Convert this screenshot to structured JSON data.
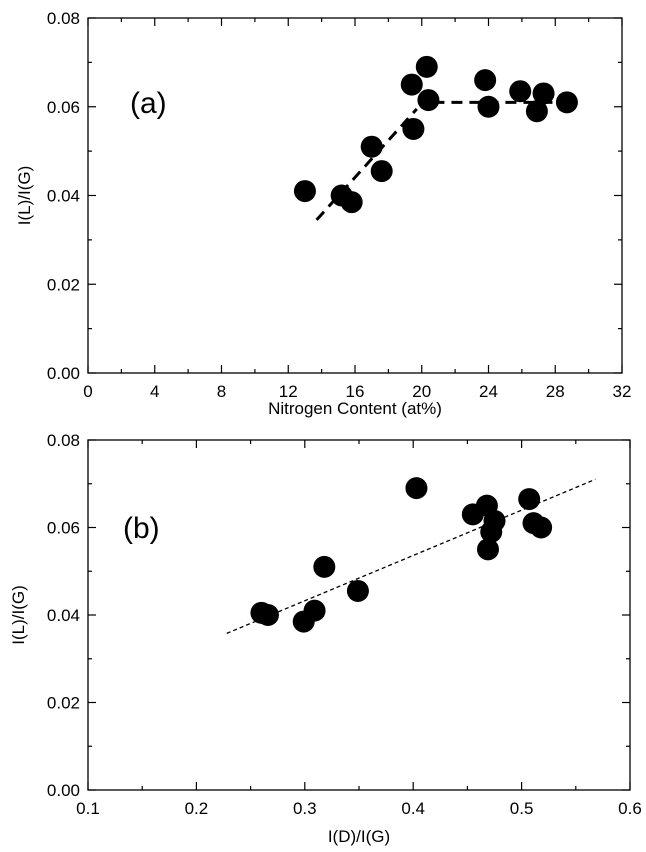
{
  "chart_data": [
    {
      "type": "scatter",
      "panel_label": "(a)",
      "xlabel": "Nitrogen Content (at%)",
      "ylabel": "I(L)/I(G)",
      "xlim": [
        0,
        32
      ],
      "ylim": [
        0.0,
        0.08
      ],
      "x_ticks": [
        "0",
        "4",
        "8",
        "12",
        "16",
        "20",
        "24",
        "28",
        "32"
      ],
      "y_ticks": [
        "0.00",
        "0.02",
        "0.04",
        "0.06",
        "0.08"
      ],
      "grid": false,
      "points": [
        {
          "x": 13.0,
          "y": 0.041
        },
        {
          "x": 15.2,
          "y": 0.04
        },
        {
          "x": 15.8,
          "y": 0.0385
        },
        {
          "x": 17.0,
          "y": 0.051
        },
        {
          "x": 17.6,
          "y": 0.0455
        },
        {
          "x": 19.4,
          "y": 0.065
        },
        {
          "x": 19.5,
          "y": 0.055
        },
        {
          "x": 20.3,
          "y": 0.069
        },
        {
          "x": 20.4,
          "y": 0.0615
        },
        {
          "x": 23.8,
          "y": 0.066
        },
        {
          "x": 24.0,
          "y": 0.06
        },
        {
          "x": 25.9,
          "y": 0.0635
        },
        {
          "x": 26.9,
          "y": 0.059
        },
        {
          "x": 27.3,
          "y": 0.063
        },
        {
          "x": 28.7,
          "y": 0.061
        }
      ],
      "fit_lines": [
        {
          "style": "dashed",
          "x": [
            13.7,
            19.7
          ],
          "y": [
            0.0345,
            0.0595
          ]
        },
        {
          "style": "dashed",
          "x": [
            20.7,
            28.7
          ],
          "y": [
            0.061,
            0.061
          ]
        }
      ]
    },
    {
      "type": "scatter",
      "panel_label": "(b)",
      "xlabel": "I(D)/I(G)",
      "ylabel": "I(L)/I(G)",
      "xlim": [
        0.1,
        0.6
      ],
      "ylim": [
        0.0,
        0.08
      ],
      "x_ticks": [
        "0.1",
        "0.2",
        "0.3",
        "0.4",
        "0.5",
        "0.6"
      ],
      "y_ticks": [
        "0.00",
        "0.02",
        "0.04",
        "0.06",
        "0.08"
      ],
      "grid": false,
      "points": [
        {
          "x": 0.26,
          "y": 0.0405
        },
        {
          "x": 0.266,
          "y": 0.04
        },
        {
          "x": 0.299,
          "y": 0.0385
        },
        {
          "x": 0.309,
          "y": 0.041
        },
        {
          "x": 0.318,
          "y": 0.051
        },
        {
          "x": 0.349,
          "y": 0.0455
        },
        {
          "x": 0.403,
          "y": 0.069
        },
        {
          "x": 0.455,
          "y": 0.063
        },
        {
          "x": 0.468,
          "y": 0.065
        },
        {
          "x": 0.469,
          "y": 0.055
        },
        {
          "x": 0.472,
          "y": 0.059
        },
        {
          "x": 0.475,
          "y": 0.0615
        },
        {
          "x": 0.507,
          "y": 0.0665
        },
        {
          "x": 0.511,
          "y": 0.061
        },
        {
          "x": 0.518,
          "y": 0.06
        }
      ],
      "fit_lines": [
        {
          "style": "dotted",
          "x": [
            0.228,
            0.568
          ],
          "y": [
            0.0358,
            0.071
          ]
        }
      ]
    }
  ]
}
